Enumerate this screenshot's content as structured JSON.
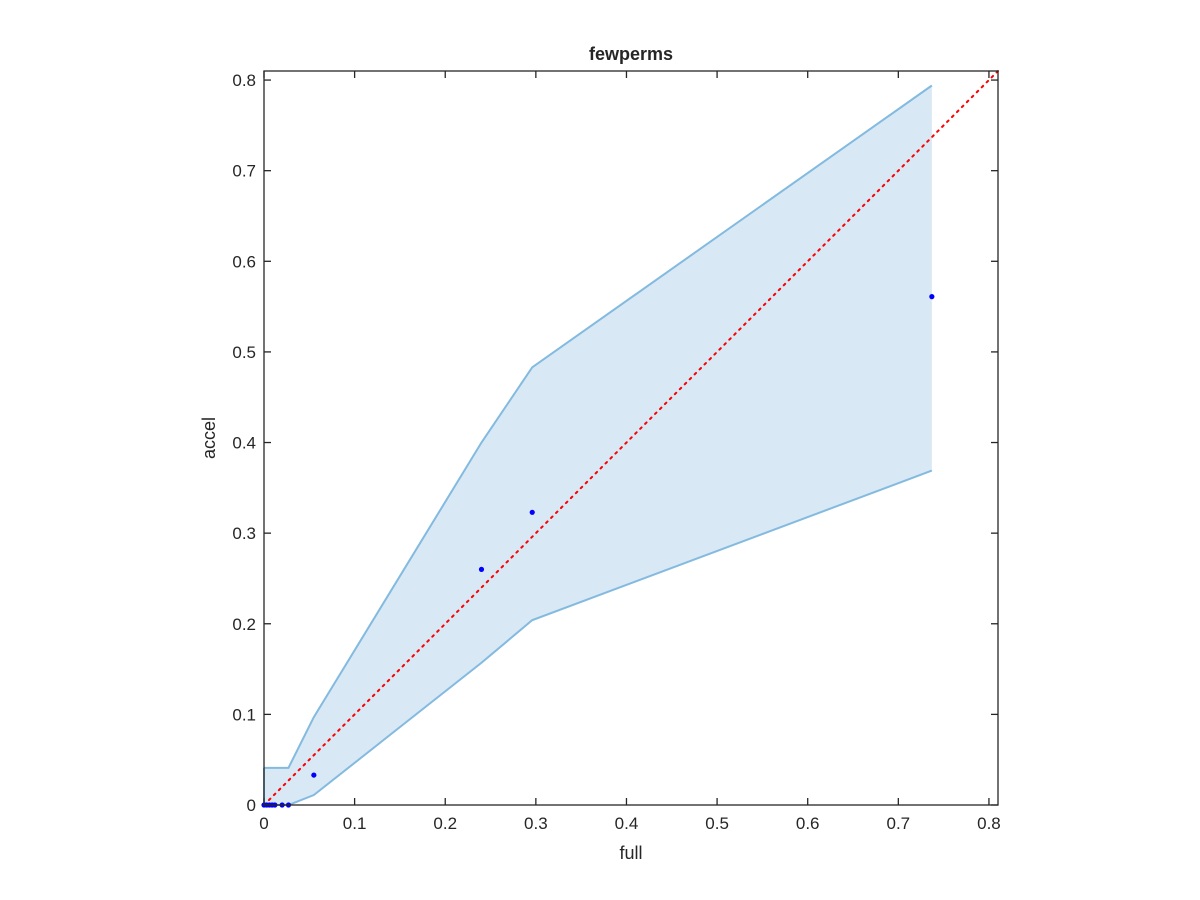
{
  "chart_data": {
    "type": "scatter",
    "title": "fewperms",
    "xlabel": "full",
    "ylabel": "accel",
    "xlim": [
      0,
      0.81
    ],
    "ylim": [
      0,
      0.81
    ],
    "xticks": [
      0,
      0.1,
      0.2,
      0.3,
      0.4,
      0.5,
      0.6,
      0.7,
      0.8
    ],
    "yticks": [
      0,
      0.1,
      0.2,
      0.3,
      0.4,
      0.5,
      0.6,
      0.7,
      0.8
    ],
    "xtick_labels": [
      "0",
      "0.1",
      "0.2",
      "0.3",
      "0.4",
      "0.5",
      "0.6",
      "0.7",
      "0.8"
    ],
    "ytick_labels": [
      "0",
      "0.1",
      "0.2",
      "0.3",
      "0.4",
      "0.5",
      "0.6",
      "0.7",
      "0.8"
    ],
    "grid": false,
    "points": {
      "x": [
        0,
        0.003,
        0.006,
        0.009,
        0.012,
        0.02,
        0.027,
        0.055,
        0.24,
        0.296,
        0.737
      ],
      "y": [
        0,
        0,
        0,
        0,
        0,
        0,
        0,
        0.033,
        0.26,
        0.323,
        0.561
      ],
      "color": "#0000ff"
    },
    "band": {
      "upper": {
        "x": [
          0,
          0.027,
          0.055,
          0.24,
          0.296,
          0.737
        ],
        "y": [
          0.041,
          0.041,
          0.097,
          0.4,
          0.483,
          0.794
        ]
      },
      "lower": {
        "x": [
          0,
          0.027,
          0.055,
          0.24,
          0.296,
          0.737
        ],
        "y": [
          0,
          0,
          0.011,
          0.157,
          0.204,
          0.369
        ]
      },
      "fill_color": "#d9e8f5",
      "line_color": "#83badf"
    },
    "reference_line": {
      "x": [
        0,
        0.81
      ],
      "y": [
        0,
        0.81
      ],
      "color": "#ff0000",
      "style": "dotted"
    }
  }
}
